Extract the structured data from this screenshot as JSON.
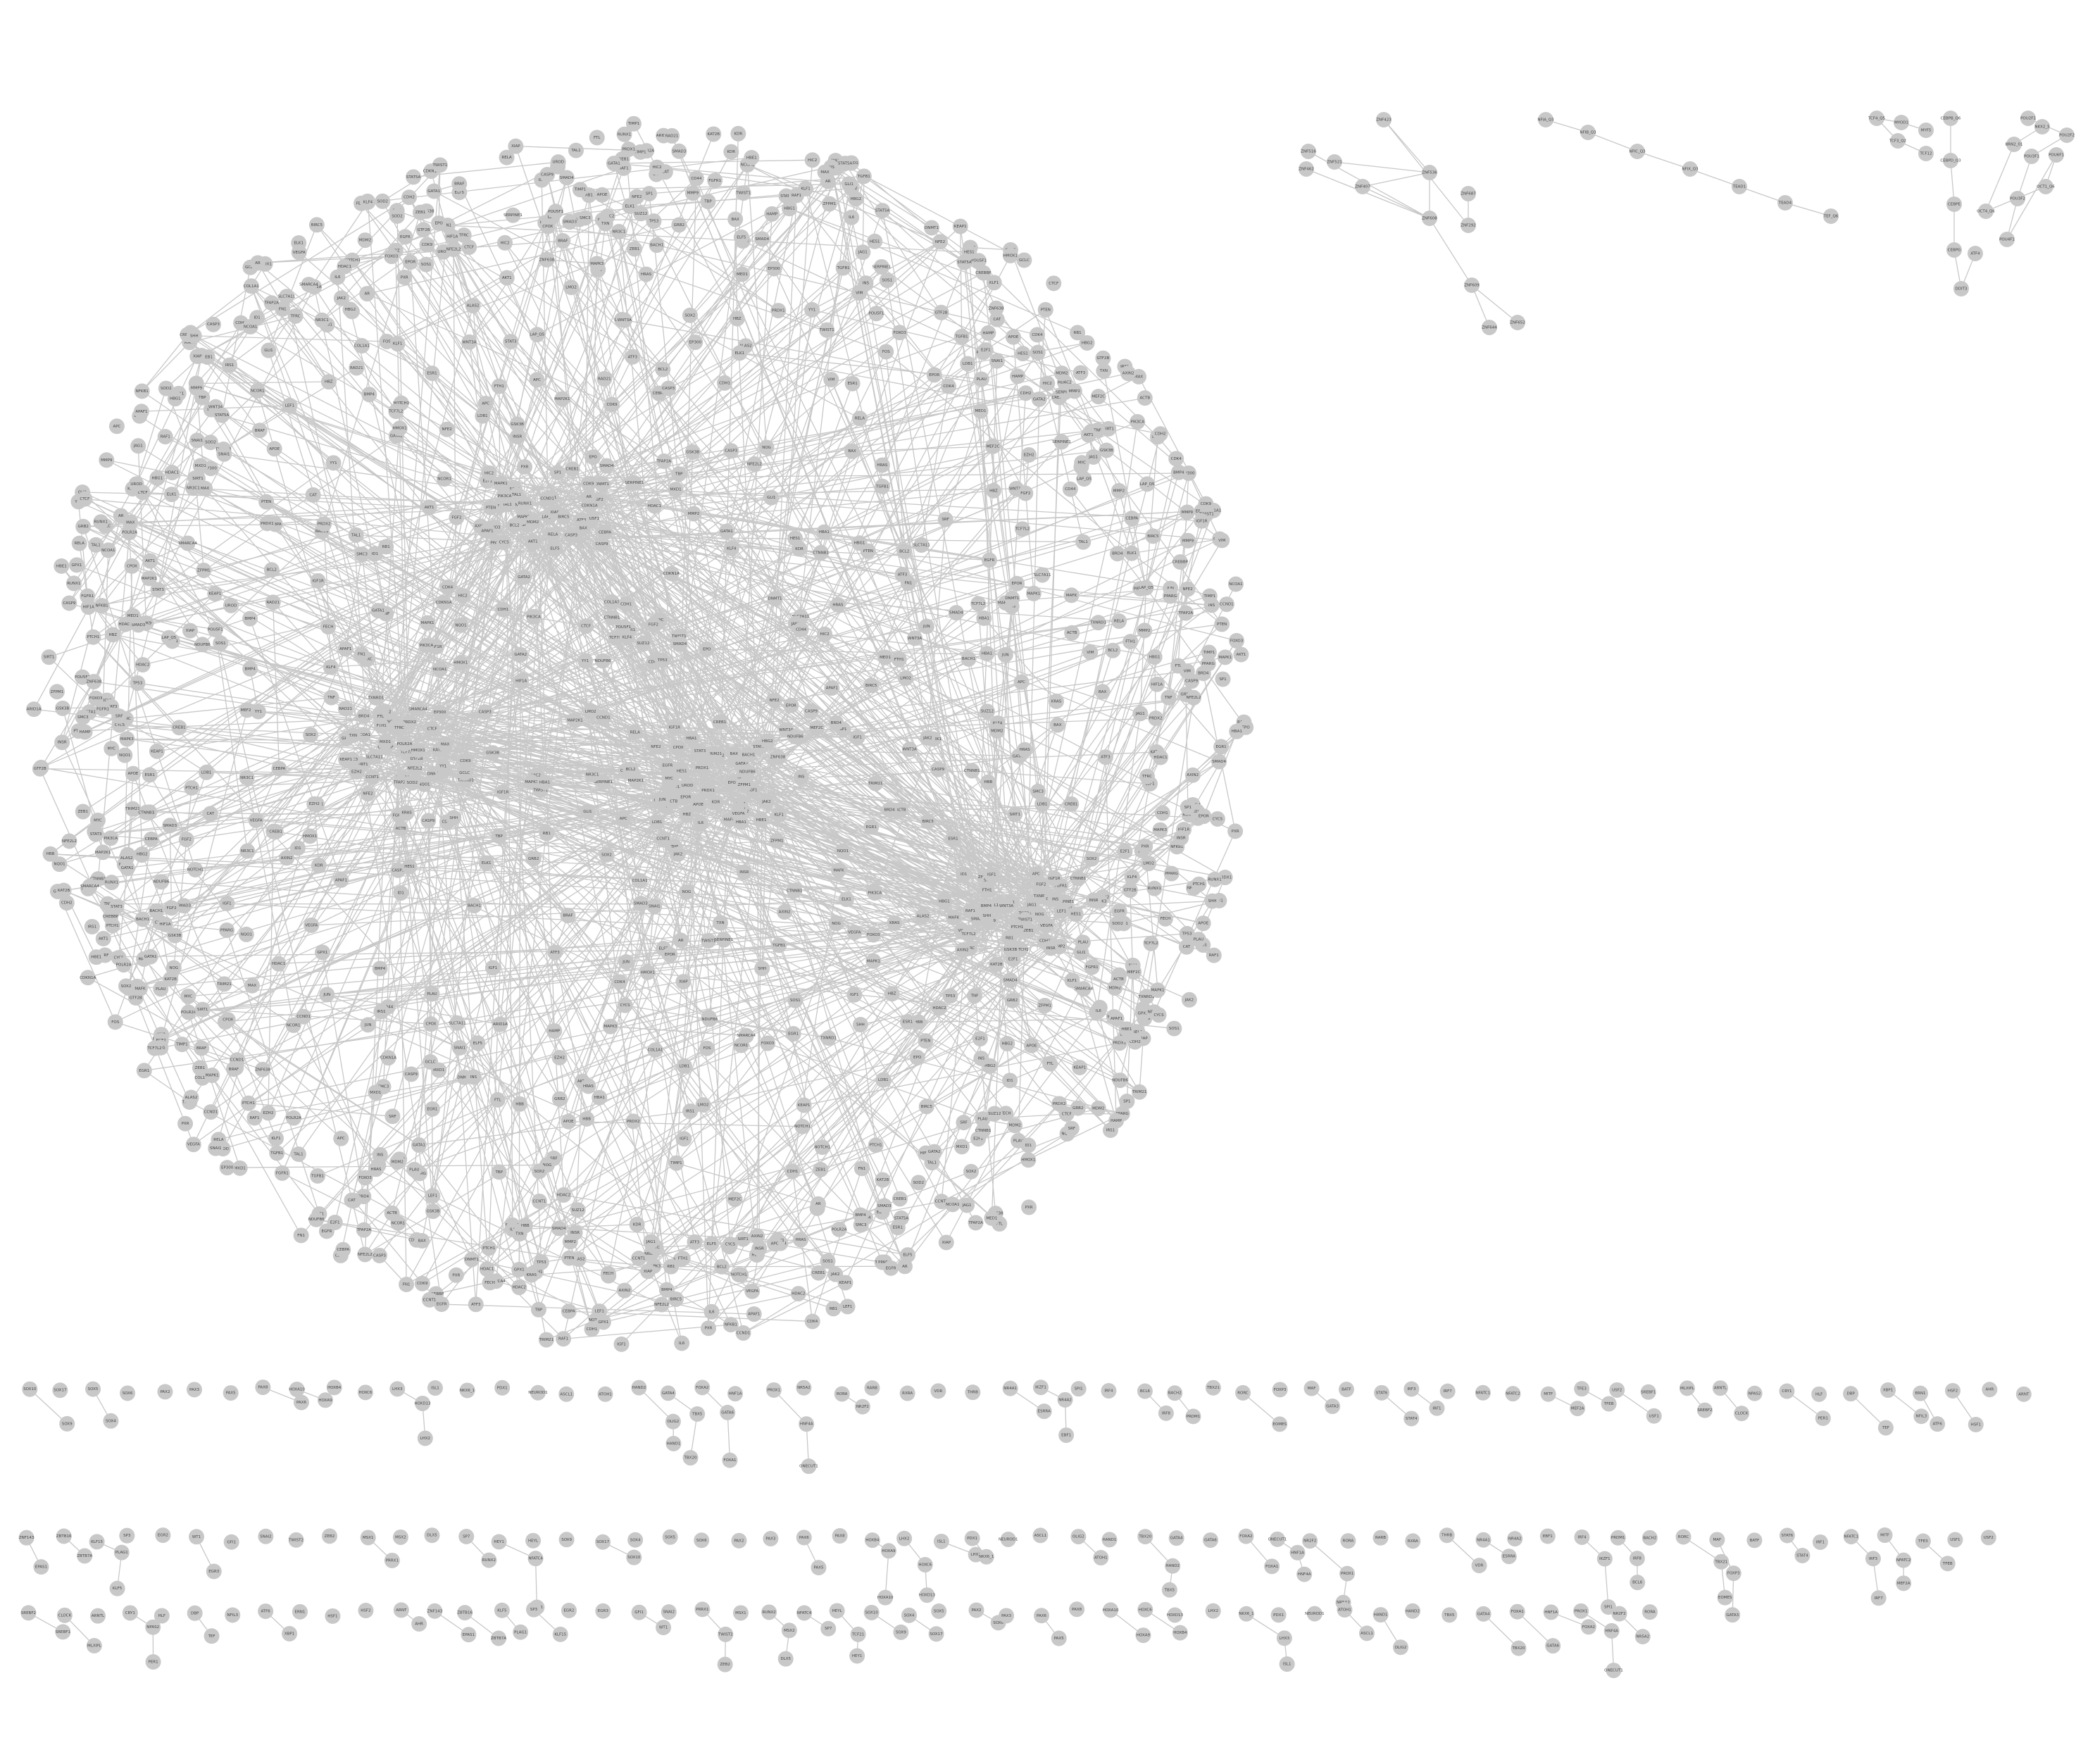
{
  "colors": {
    "node": "#c8c8c8",
    "edge": "#c8c8c8",
    "label": "#444444",
    "background": "#ffffff"
  },
  "graph": {
    "components": [
      {
        "id": "main",
        "labels": [
          "NDUFB6",
          "VEGFA",
          "TP53",
          "HBA1",
          "HBB",
          "KDR",
          "PRDX1",
          "ACTB",
          "ZNF638",
          "TRIM21",
          "APOE",
          "CD44",
          "IL6",
          "TNF",
          "HIF1A",
          "MYC",
          "EGFR",
          "STAT3",
          "JUN",
          "FOS",
          "ELF5",
          "PXR",
          "HIC2",
          "KLF4",
          "SOX2",
          "LAP_Q5",
          "POU5F1",
          "SMAD4",
          "NFKB1",
          "RELA",
          "ATF3",
          "EGR1",
          "CREB1",
          "SP1",
          "GATA1",
          "TAL1",
          "RUNX1",
          "CEBPA",
          "PPARG",
          "ESR1",
          "AR",
          "NR3C1",
          "FOXO3",
          "MAPK1",
          "MAPK3",
          "AKT1",
          "PIK3CA",
          "PTEN",
          "CDKN1A",
          "MDM2",
          "BCL2",
          "BAX",
          "CASP3",
          "CASP9",
          "CYCS",
          "APAF1",
          "XIAP",
          "BIRC5",
          "CCND1",
          "CDK4",
          "RB1",
          "E2F1",
          "SMAD3",
          "TGFB1",
          "COL1A1",
          "FN1",
          "MMP2",
          "MMP9",
          "TIMP1",
          "SERPINE1",
          "PLAU",
          "VIM",
          "CDH1",
          "CDH2",
          "SNAI1",
          "TWIST1",
          "ZEB1",
          "NOTCH1",
          "HES1",
          "JAG1",
          "WNT3A",
          "CTNNB1",
          "LEF1",
          "TCF7L2",
          "AXIN2",
          "GSK3B",
          "APC",
          "SHH",
          "GLI1",
          "PTCH1",
          "BMP4",
          "ID1",
          "NOG",
          "FGF2",
          "FGFR1",
          "IGF1",
          "IGF1R",
          "INS",
          "INSR",
          "IRS1",
          "GRB2",
          "SOS1",
          "KRAS",
          "HRAS",
          "RAF1",
          "BRAF",
          "MAP2K1",
          "ELK1",
          "SRF",
          "MEF2C",
          "HDAC1",
          "HDAC2",
          "SIRT1",
          "EP300",
          "CREBBP",
          "NCOA1",
          "NCOR1",
          "DNMT1",
          "EZH2",
          "SUZ12",
          "KAT2B",
          "BRD4",
          "CDK9",
          "CCNT1",
          "POLR2A",
          "TBP",
          "GTF2B",
          "MED1",
          "SMARCA4",
          "ARID1A",
          "CTCF",
          "RAD21",
          "SMC3",
          "YY1",
          "MAX",
          "MXD1",
          "TFAP2A",
          "NFE2L2",
          "KEAP1",
          "HMOX1",
          "NQO1",
          "SOD2",
          "CAT",
          "GPX1",
          "TXN",
          "TXNRD1",
          "PRDX2",
          "GCLC",
          "SLC7A11",
          "TFRC",
          "FTH1",
          "FTL",
          "HAMP",
          "EPO",
          "EPOR",
          "JAK2",
          "STAT5A",
          "GATA2",
          "KLF1",
          "LMO2",
          "LDB1",
          "ZFPM1",
          "NFE2",
          "BACH1",
          "MAFK",
          "HBG1",
          "HBG2",
          "HBE1",
          "HBZ",
          "ALAS2",
          "FECH",
          "UROD",
          "CPOX"
        ],
        "edges": 1800
      },
      {
        "id": "c1",
        "labels": [
          "ZNF423",
          "ZNF521",
          "ZNF536",
          "ZNF407",
          "ZNF462",
          "ZNF516",
          "ZNF608",
          "ZNF609",
          "ZNF644",
          "ZNF652",
          "ZNF687",
          "ZNF292"
        ],
        "edges": [
          [
            0,
            2
          ],
          [
            1,
            2
          ],
          [
            2,
            3
          ],
          [
            2,
            6
          ],
          [
            3,
            6
          ],
          [
            4,
            6
          ],
          [
            5,
            6
          ],
          [
            6,
            7
          ],
          [
            7,
            8
          ],
          [
            7,
            9
          ],
          [
            10,
            11
          ],
          [
            0,
            11
          ]
        ]
      },
      {
        "id": "c2",
        "labels": [
          "NFIA_Q3",
          "NFIB_Q3",
          "NFIC_Q3",
          "NFIX_Q3",
          "TEAD1",
          "TEAD4",
          "TEF_Q6",
          "HLF_Q2",
          "DBP_Q6"
        ],
        "edges": [
          [
            0,
            1
          ],
          [
            1,
            2
          ],
          [
            2,
            3
          ],
          [
            3,
            4
          ],
          [
            4,
            5
          ],
          [
            5,
            6
          ],
          [
            6,
            7
          ]
        ]
      },
      {
        "id": "c3",
        "labels": [
          "TCF4_Q5",
          "TCF3_Q2",
          "TCF12",
          "MYOD1",
          "MYF5"
        ],
        "edges": [
          [
            0,
            1
          ],
          [
            1,
            2
          ],
          [
            0,
            3
          ],
          [
            3,
            4
          ]
        ]
      },
      {
        "id": "c4",
        "labels": [
          "CEBPB_Q6",
          "CEBPD_Q3",
          "CEBPE",
          "CEBPG",
          "DDIT3",
          "ATF4"
        ],
        "edges": [
          [
            0,
            1
          ],
          [
            1,
            2
          ],
          [
            2,
            3
          ],
          [
            3,
            4
          ],
          [
            4,
            5
          ]
        ]
      },
      {
        "id": "c5",
        "labels": [
          "POU2F1",
          "POU2F2",
          "POU3F1",
          "POU3F2",
          "POU4F1",
          "POU6F1",
          "OCT1_Q6",
          "OCT4_Q6",
          "BRN2_01",
          "NKX2_5"
        ],
        "edges": 10
      }
    ],
    "isolated_labels": [
      "SOX9",
      "SOX10",
      "SOX17",
      "SOX4",
      "SOX5",
      "SOX6",
      "PAX2",
      "PAX3",
      "PAX5",
      "PAX6",
      "PAX8",
      "HOXA9",
      "HOXA10",
      "HOXB4",
      "HOXC6",
      "HOXD13",
      "LHX2",
      "LHX3",
      "ISL1",
      "NKX6_1",
      "PDX1",
      "NEUROD1",
      "ASCL1",
      "ATOH1",
      "OLIG2",
      "HAND1",
      "HAND2",
      "TBX5",
      "TBX20",
      "GATA4",
      "GATA6",
      "FOXA1",
      "FOXA2",
      "HNF1A",
      "HNF4A",
      "ONECUT1",
      "PROX1",
      "NR5A2",
      "NR2F2",
      "RORA",
      "RARB",
      "RXRA",
      "VDR",
      "THRB",
      "ESRRA",
      "NR4A1",
      "NR4A2",
      "EBF1",
      "IKZF1",
      "SPI1",
      "IRF4",
      "IRF8",
      "BCL6",
      "PRDM1",
      "BACH2",
      "TBX21",
      "EOMES",
      "RORC",
      "FOXP3",
      "GATA3",
      "MAF",
      "BATF",
      "STAT4",
      "STAT6",
      "IRF1",
      "IRF3",
      "IRF7",
      "NFATC1",
      "NFATC2",
      "MEF2A",
      "MITF",
      "TFEB",
      "TFE3",
      "USF1",
      "USF2",
      "SREBF1",
      "SREBF2",
      "MLXIPL",
      "CLOCK",
      "ARNTL",
      "NPAS2",
      "PER1",
      "CRY1",
      "HLF",
      "TEF",
      "DBP",
      "NFIL3",
      "XBP1",
      "ATF6",
      "ERN1",
      "HSF1",
      "HSF2",
      "AHR",
      "ARNT",
      "EPAS1",
      "ZNF143",
      "ZBTB7A",
      "ZBTB16",
      "PLAG1",
      "KLF5",
      "KLF15",
      "SP3",
      "EGR2",
      "EGR3",
      "WT1",
      "GFI1",
      "SNAI2",
      "TWIST2",
      "ZEB2",
      "PRRX1",
      "MSX1",
      "MSX2",
      "DLX5",
      "RUNX2",
      "SP7",
      "NFATC4",
      "TCF21",
      "HEY1",
      "HEYL"
    ]
  }
}
